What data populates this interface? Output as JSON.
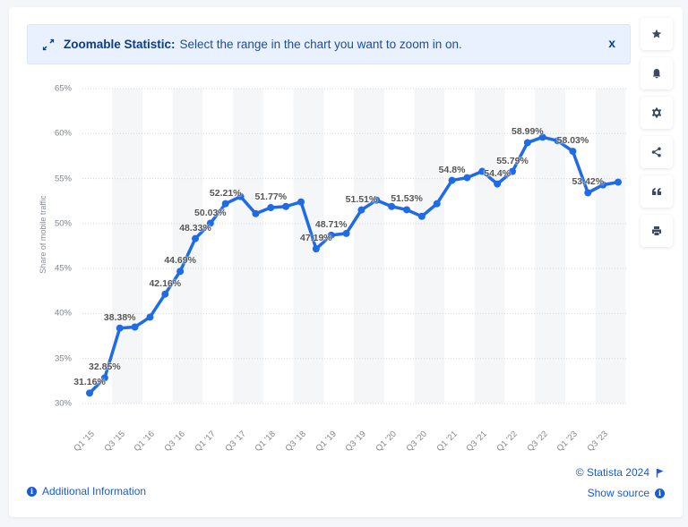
{
  "banner": {
    "icon": "expand-arrows-icon",
    "title": "Zoomable Statistic:",
    "message": "Select the range in the chart you want to zoom in on.",
    "close_label": "x"
  },
  "sidebar": {
    "buttons": [
      {
        "name": "favorite",
        "icon": "star-icon"
      },
      {
        "name": "notification",
        "icon": "bell-icon"
      },
      {
        "name": "settings",
        "icon": "gear-icon"
      },
      {
        "name": "share",
        "icon": "share-icon"
      },
      {
        "name": "cite",
        "icon": "quote-icon"
      },
      {
        "name": "print",
        "icon": "printer-icon"
      }
    ]
  },
  "footer": {
    "additional_info": "Additional Information",
    "copyright": "© Statista 2024",
    "show_source": "Show source"
  },
  "colors": {
    "line": "#1f6ae6",
    "banner_bg": "#e8f1fd",
    "link": "#1a5bd6"
  },
  "chart_data": {
    "type": "line",
    "title": "",
    "xlabel": "",
    "ylabel": "Share of mobile traffic",
    "ylim": [
      30,
      65
    ],
    "yticks": [
      "30%",
      "35%",
      "40%",
      "45%",
      "50%",
      "55%",
      "60%",
      "65%"
    ],
    "grid": true,
    "legend": null,
    "x": [
      "Q1 '15",
      "Q2 '15",
      "Q3 '15",
      "Q4 '15",
      "Q1 '16",
      "Q2 '16",
      "Q3 '16",
      "Q4 '16",
      "Q1 '17",
      "Q2 '17",
      "Q3 '17",
      "Q4 '17",
      "Q1 '18",
      "Q2 '18",
      "Q3 '18",
      "Q4 '18",
      "Q1 '19",
      "Q2 '19",
      "Q3 '19",
      "Q4 '19",
      "Q1 '20",
      "Q2 '20",
      "Q3 '20",
      "Q4 '20",
      "Q1 '21",
      "Q2 '21",
      "Q3 '21",
      "Q4 '21",
      "Q1 '22",
      "Q2 '22",
      "Q3 '22",
      "Q4 '22",
      "Q1 '23",
      "Q2 '23",
      "Q3 '23",
      "Q4 '23"
    ],
    "xtick_labels": [
      "Q1 '15",
      "Q3 '15",
      "Q1 '16",
      "Q3 '16",
      "Q1 '17",
      "Q3 '17",
      "Q1 '18",
      "Q3 '18",
      "Q1 '19",
      "Q3 '19",
      "Q1 '20",
      "Q3 '20",
      "Q1 '21",
      "Q3 '21",
      "Q1 '22",
      "Q3 '22",
      "Q1 '23",
      "Q3 '23"
    ],
    "series": [
      {
        "name": "Share of mobile traffic",
        "values": [
          31.16,
          32.85,
          38.38,
          38.5,
          39.6,
          42.16,
          44.69,
          48.33,
          50.03,
          52.21,
          53.0,
          51.1,
          51.77,
          51.9,
          52.4,
          47.19,
          48.71,
          48.9,
          51.51,
          52.6,
          51.9,
          51.53,
          50.8,
          52.2,
          54.8,
          55.1,
          55.8,
          54.4,
          55.79,
          58.99,
          59.6,
          59.2,
          58.03,
          53.42,
          54.3,
          54.6
        ]
      }
    ],
    "data_labels": [
      {
        "index": 0,
        "text": "31.16%"
      },
      {
        "index": 1,
        "text": "32.85%"
      },
      {
        "index": 2,
        "text": "38.38%"
      },
      {
        "index": 5,
        "text": "42.16%"
      },
      {
        "index": 6,
        "text": "44.69%"
      },
      {
        "index": 7,
        "text": "48.33%"
      },
      {
        "index": 8,
        "text": "50.03%"
      },
      {
        "index": 9,
        "text": "52.21%"
      },
      {
        "index": 12,
        "text": "51.77%"
      },
      {
        "index": 15,
        "text": "47.19%"
      },
      {
        "index": 16,
        "text": "48.71%"
      },
      {
        "index": 18,
        "text": "51.51%"
      },
      {
        "index": 21,
        "text": "51.53%"
      },
      {
        "index": 24,
        "text": "54.8%"
      },
      {
        "index": 27,
        "text": "54.4%"
      },
      {
        "index": 28,
        "text": "55.79%"
      },
      {
        "index": 29,
        "text": "58.99%"
      },
      {
        "index": 32,
        "text": "58.03%"
      },
      {
        "index": 33,
        "text": "53.42%"
      }
    ]
  }
}
